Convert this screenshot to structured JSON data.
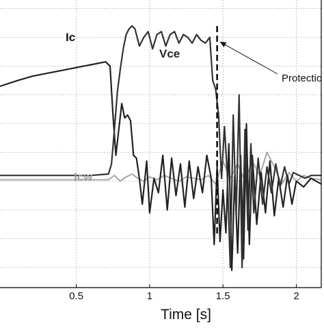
{
  "chart_data": {
    "type": "line",
    "title": "",
    "xlabel": "Time [s]",
    "ylabel": "",
    "xlim": [
      -0.02,
      2.17
    ],
    "ylim": [
      0,
      10
    ],
    "grid": true,
    "x_ticks": [
      0.5,
      1,
      1.5,
      2
    ],
    "x_tick_labels": [
      "0.5",
      "1",
      "1.5",
      "2"
    ],
    "y_gridlines": [
      0.7,
      1.7,
      2.7,
      3.7,
      4.7,
      5.7,
      6.7,
      7.7,
      8.7,
      9.7
    ],
    "annotations": [
      {
        "label": "Protectio",
        "point_x": 1.46,
        "point_y": 7.7
      }
    ],
    "markers": [
      {
        "type": "vertical-dashed-line",
        "x": 1.46
      }
    ],
    "series": [
      {
        "name": "Ic",
        "color": "#222222",
        "x": [
          -0.02,
          0.1,
          0.2,
          0.3,
          0.4,
          0.5,
          0.6,
          0.7,
          0.73,
          0.75,
          0.77,
          0.79,
          0.81,
          0.83,
          0.85,
          0.87,
          0.89,
          0.91,
          0.93,
          0.95,
          0.98,
          1.0,
          1.03,
          1.06,
          1.09,
          1.12,
          1.15,
          1.18,
          1.21,
          1.24,
          1.27,
          1.3,
          1.33,
          1.36,
          1.39,
          1.42,
          1.44,
          1.46,
          1.48,
          1.5,
          1.52,
          1.54,
          1.56,
          1.58,
          1.6,
          1.62,
          1.64,
          1.66,
          1.68,
          1.7,
          1.73,
          1.76,
          1.79,
          1.82,
          1.85,
          1.88,
          1.91,
          1.94,
          1.97,
          2.0,
          2.05,
          2.1,
          2.17
        ],
        "values": [
          7.0,
          7.2,
          7.35,
          7.45,
          7.55,
          7.65,
          7.75,
          7.85,
          7.7,
          6.0,
          4.6,
          5.5,
          6.4,
          5.9,
          6.0,
          5.8,
          4.6,
          4.5,
          3.8,
          2.9,
          4.4,
          2.6,
          3.8,
          3.3,
          4.6,
          2.7,
          4.5,
          3.2,
          4.3,
          2.8,
          4.4,
          3.1,
          4.2,
          3.3,
          4.6,
          3.8,
          1.5,
          4.2,
          1.6,
          3.4,
          1.9,
          5.0,
          0.6,
          3.9,
          1.2,
          4.6,
          1.0,
          5.7,
          1.5,
          4.6,
          2.2,
          4.0,
          2.6,
          4.4,
          2.5,
          3.8,
          2.8,
          3.9,
          2.9,
          3.7,
          3.5,
          3.8,
          3.6
        ]
      },
      {
        "name": "Vce",
        "color": "#333333",
        "x": [
          -0.02,
          0.2,
          0.4,
          0.6,
          0.72,
          0.74,
          0.76,
          0.78,
          0.8,
          0.82,
          0.84,
          0.86,
          0.88,
          0.9,
          0.93,
          0.96,
          0.99,
          1.02,
          1.05,
          1.08,
          1.11,
          1.14,
          1.17,
          1.2,
          1.23,
          1.26,
          1.29,
          1.32,
          1.35,
          1.38,
          1.41,
          1.43,
          1.45,
          1.47,
          1.49,
          1.51,
          1.53,
          1.55,
          1.57,
          1.59,
          1.61,
          1.63,
          1.65,
          1.67,
          1.69,
          1.71,
          1.74,
          1.77,
          1.8,
          1.83,
          1.86,
          1.89,
          1.92,
          1.95,
          1.98,
          2.02,
          2.06,
          2.1,
          2.17
        ],
        "values": [
          3.9,
          3.9,
          3.9,
          3.9,
          3.95,
          4.3,
          5.5,
          6.8,
          7.6,
          8.3,
          8.8,
          9.0,
          9.1,
          9.0,
          8.4,
          8.7,
          8.9,
          8.3,
          8.8,
          8.9,
          8.4,
          8.8,
          8.9,
          8.5,
          8.8,
          8.7,
          8.5,
          8.8,
          8.6,
          8.5,
          8.7,
          7.2,
          6.9,
          6.0,
          3.8,
          5.6,
          3.9,
          0.7,
          6.0,
          2.5,
          6.7,
          0.7,
          5.5,
          2.0,
          5.0,
          2.6,
          4.5,
          2.9,
          4.2,
          3.3,
          4.3,
          3.5,
          4.2,
          3.6,
          4.0,
          3.9,
          3.8,
          3.9,
          3.9
        ]
      },
      {
        "name": "Icw",
        "color": "#a8a8a8",
        "x": [
          -0.02,
          0.2,
          0.4,
          0.6,
          0.72,
          0.76,
          0.8,
          0.84,
          0.88,
          0.92,
          0.96,
          1.0,
          1.05,
          1.1,
          1.15,
          1.2,
          1.25,
          1.3,
          1.35,
          1.4,
          1.45,
          1.5,
          1.55,
          1.6,
          1.65,
          1.7,
          1.75,
          1.8,
          1.85,
          1.9,
          1.95,
          2.0,
          2.05,
          2.1,
          2.17
        ],
        "values": [
          3.75,
          3.75,
          3.75,
          3.75,
          3.75,
          3.9,
          3.7,
          3.85,
          3.95,
          3.8,
          3.7,
          3.85,
          3.75,
          3.9,
          3.8,
          3.7,
          3.85,
          3.8,
          3.75,
          3.9,
          3.6,
          4.4,
          3.8,
          4.3,
          3.7,
          4.4,
          3.9,
          4.7,
          4.2,
          3.6,
          4.0,
          3.7,
          3.9,
          3.8,
          3.75
        ]
      }
    ]
  }
}
